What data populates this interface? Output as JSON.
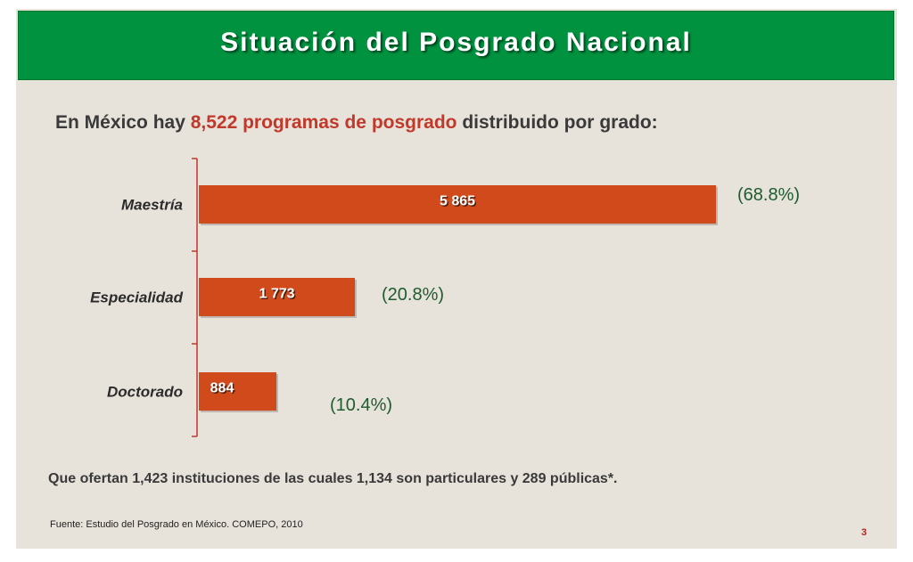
{
  "slide": {
    "title": "Situación del Posgrado Nacional",
    "intro": {
      "pre": "En México hay ",
      "highlight": "8,522 programas de posgrado",
      "post": " distribuido por grado:"
    },
    "footer": "Que ofertan 1,423 instituciones de las cuales 1,134 son particulares y 289 públicas*.",
    "source": "Fuente:  Estudio del Posgrado en México. COMEPO, 2010",
    "page_number": "3"
  },
  "colors": {
    "title_bar": "#00923f",
    "background": "#e7e2da",
    "bar": "#d04a1c",
    "highlight_text": "#c0392b",
    "percent_text": "#1e5c2f",
    "axis": "#c0392b"
  },
  "chart_data": {
    "type": "bar",
    "orientation": "horizontal",
    "categories": [
      "Maestría",
      "Especialidad",
      "Doctorado"
    ],
    "values": [
      5865,
      1773,
      884
    ],
    "value_labels": [
      "5 865",
      "1 773",
      "884"
    ],
    "percent_labels": [
      "(68.8%)",
      "(20.8%)",
      "(10.4%)"
    ],
    "title": "",
    "xlabel": "",
    "ylabel": "",
    "grid": false,
    "legend": "none"
  }
}
